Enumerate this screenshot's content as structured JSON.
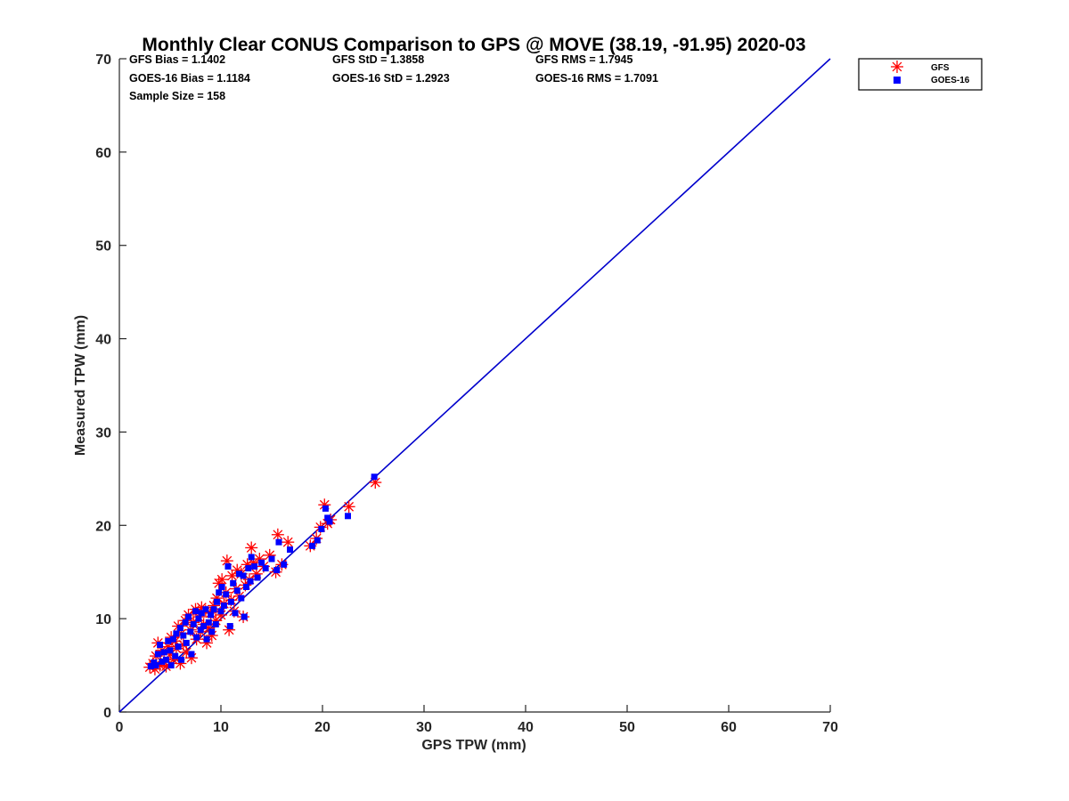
{
  "chart_data": {
    "type": "scatter",
    "title": "Monthly Clear CONUS Comparison to GPS @ MOVE (38.19, -91.95) 2020-03",
    "xlabel": "GPS TPW (mm)",
    "ylabel": "Measured TPW (mm)",
    "xlim": [
      0,
      70
    ],
    "ylim": [
      0,
      70
    ],
    "xticks": [
      0,
      10,
      20,
      30,
      40,
      50,
      60,
      70
    ],
    "yticks": [
      0,
      10,
      20,
      30,
      40,
      50,
      60,
      70
    ],
    "grid": false,
    "legend_position": "top-right, outside plot",
    "stats": {
      "gfs_bias": "GFS Bias = 1.1402",
      "gfs_std": "GFS StD = 1.3858",
      "gfs_rms": "GFS RMS = 1.7945",
      "goes_bias": "GOES-16 Bias = 1.1184",
      "goes_std": "GOES-16 StD = 1.2923",
      "goes_rms": "GOES-16 RMS = 1.7091",
      "sample_size": "Sample Size = 158"
    },
    "reference_line": {
      "name": "1:1 line",
      "color": "#0000cc",
      "x": [
        0,
        70
      ],
      "y": [
        0,
        70
      ]
    },
    "series": [
      {
        "name": "GFS",
        "marker": "asterisk",
        "color": "#ff0000",
        "points": [
          [
            3.0,
            4.8
          ],
          [
            3.3,
            5.2
          ],
          [
            3.5,
            4.6
          ],
          [
            3.6,
            6.0
          ],
          [
            3.8,
            7.4
          ],
          [
            4.0,
            5.0
          ],
          [
            4.2,
            6.6
          ],
          [
            4.4,
            5.4
          ],
          [
            4.6,
            4.9
          ],
          [
            4.8,
            7.0
          ],
          [
            5.0,
            6.2
          ],
          [
            5.1,
            8.0
          ],
          [
            5.3,
            5.6
          ],
          [
            5.5,
            7.6
          ],
          [
            5.6,
            6.8
          ],
          [
            5.8,
            9.2
          ],
          [
            6.0,
            5.2
          ],
          [
            6.1,
            8.4
          ],
          [
            6.3,
            7.2
          ],
          [
            6.5,
            9.8
          ],
          [
            6.6,
            6.4
          ],
          [
            6.8,
            10.4
          ],
          [
            7.0,
            8.8
          ],
          [
            7.1,
            5.8
          ],
          [
            7.3,
            9.6
          ],
          [
            7.5,
            11.0
          ],
          [
            7.6,
            7.8
          ],
          [
            7.8,
            10.2
          ],
          [
            8.0,
            8.6
          ],
          [
            8.1,
            11.2
          ],
          [
            8.3,
            9.4
          ],
          [
            8.5,
            10.8
          ],
          [
            8.6,
            7.4
          ],
          [
            8.8,
            9.0
          ],
          [
            9.0,
            10.6
          ],
          [
            9.1,
            8.2
          ],
          [
            9.3,
            11.4
          ],
          [
            9.5,
            9.8
          ],
          [
            9.6,
            12.2
          ],
          [
            9.8,
            13.8
          ],
          [
            10.0,
            10.4
          ],
          [
            10.1,
            14.2
          ],
          [
            10.3,
            11.6
          ],
          [
            10.5,
            12.8
          ],
          [
            10.6,
            16.2
          ],
          [
            10.8,
            8.8
          ],
          [
            11.0,
            12.0
          ],
          [
            11.1,
            14.6
          ],
          [
            11.3,
            10.8
          ],
          [
            11.5,
            13.2
          ],
          [
            11.6,
            15.2
          ],
          [
            11.8,
            12.4
          ],
          [
            12.0,
            14.8
          ],
          [
            12.2,
            10.2
          ],
          [
            12.4,
            13.6
          ],
          [
            12.6,
            15.8
          ],
          [
            12.8,
            14.2
          ],
          [
            13.0,
            17.6
          ],
          [
            13.2,
            16.0
          ],
          [
            13.5,
            14.8
          ],
          [
            13.8,
            16.4
          ],
          [
            14.2,
            15.6
          ],
          [
            14.8,
            16.8
          ],
          [
            15.4,
            15.0
          ],
          [
            15.6,
            19.0
          ],
          [
            16.0,
            15.8
          ],
          [
            16.6,
            18.2
          ],
          [
            18.8,
            17.8
          ],
          [
            19.4,
            18.6
          ],
          [
            19.8,
            19.8
          ],
          [
            20.2,
            22.2
          ],
          [
            20.5,
            20.2
          ],
          [
            20.8,
            20.6
          ],
          [
            22.6,
            22.0
          ],
          [
            25.2,
            24.6
          ]
        ]
      },
      {
        "name": "GOES-16",
        "marker": "square",
        "color": "#0000ff",
        "points": [
          [
            3.1,
            4.9
          ],
          [
            3.4,
            5.3
          ],
          [
            3.6,
            5.0
          ],
          [
            3.8,
            6.2
          ],
          [
            4.0,
            7.2
          ],
          [
            4.2,
            5.4
          ],
          [
            4.4,
            6.4
          ],
          [
            4.6,
            5.6
          ],
          [
            4.8,
            7.6
          ],
          [
            5.0,
            6.6
          ],
          [
            5.1,
            5.0
          ],
          [
            5.3,
            7.8
          ],
          [
            5.5,
            6.0
          ],
          [
            5.6,
            8.4
          ],
          [
            5.8,
            7.0
          ],
          [
            6.0,
            9.0
          ],
          [
            6.1,
            5.6
          ],
          [
            6.3,
            8.2
          ],
          [
            6.5,
            9.6
          ],
          [
            6.6,
            7.4
          ],
          [
            6.8,
            10.2
          ],
          [
            7.0,
            8.6
          ],
          [
            7.1,
            6.2
          ],
          [
            7.3,
            9.4
          ],
          [
            7.5,
            10.8
          ],
          [
            7.6,
            8.0
          ],
          [
            7.8,
            10.0
          ],
          [
            8.0,
            8.8
          ],
          [
            8.1,
            10.6
          ],
          [
            8.3,
            9.2
          ],
          [
            8.5,
            11.0
          ],
          [
            8.6,
            7.8
          ],
          [
            8.8,
            9.6
          ],
          [
            9.0,
            10.4
          ],
          [
            9.1,
            8.6
          ],
          [
            9.3,
            11.0
          ],
          [
            9.5,
            9.4
          ],
          [
            9.6,
            11.8
          ],
          [
            9.8,
            12.8
          ],
          [
            10.0,
            10.8
          ],
          [
            10.1,
            13.4
          ],
          [
            10.3,
            11.4
          ],
          [
            10.5,
            12.6
          ],
          [
            10.7,
            15.6
          ],
          [
            10.9,
            9.2
          ],
          [
            11.0,
            11.8
          ],
          [
            11.2,
            13.8
          ],
          [
            11.4,
            10.6
          ],
          [
            11.6,
            13.0
          ],
          [
            11.8,
            14.8
          ],
          [
            12.0,
            12.2
          ],
          [
            12.2,
            14.6
          ],
          [
            12.3,
            10.2
          ],
          [
            12.5,
            13.4
          ],
          [
            12.7,
            15.4
          ],
          [
            12.9,
            14.0
          ],
          [
            13.0,
            16.6
          ],
          [
            13.3,
            15.6
          ],
          [
            13.6,
            14.4
          ],
          [
            14.0,
            16.0
          ],
          [
            14.4,
            15.4
          ],
          [
            15.0,
            16.4
          ],
          [
            15.5,
            15.2
          ],
          [
            15.7,
            18.2
          ],
          [
            16.2,
            15.8
          ],
          [
            16.8,
            17.4
          ],
          [
            19.0,
            17.8
          ],
          [
            19.5,
            18.4
          ],
          [
            19.9,
            19.6
          ],
          [
            20.3,
            21.8
          ],
          [
            20.5,
            20.8
          ],
          [
            20.7,
            20.4
          ],
          [
            22.5,
            21.0
          ],
          [
            25.1,
            25.2
          ]
        ]
      }
    ]
  }
}
